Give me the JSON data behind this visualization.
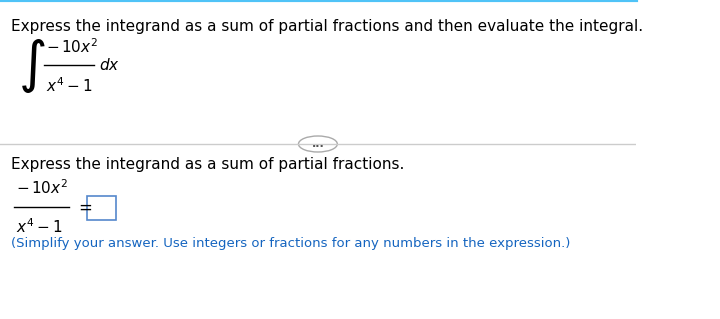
{
  "bg_color": "#ffffff",
  "top_border_color": "#4FC3F7",
  "title_text": "Express the integrand as a sum of partial fractions and then evaluate the integral.",
  "title_fontsize": 11,
  "title_color": "#000000",
  "divider_color": "#cccccc",
  "dots_button_color": "#e0e0e0",
  "section2_text": "Express the integrand as a sum of partial fractions.",
  "section2_color": "#000000",
  "hint_text": "(Simplify your answer. Use integers or fractions for any numbers in the expression.)",
  "hint_color": "#1565C0",
  "hint_fontsize": 9.5
}
